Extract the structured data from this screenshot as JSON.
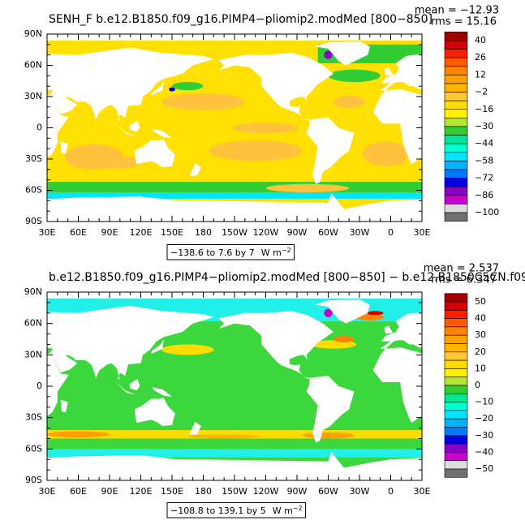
{
  "panels": [
    {
      "title": "SENH_F b.e12.B1850.f09_g16.PIMP4−pliomip2.modMed [800−850]",
      "mean": "mean = −12.93",
      "rms": "rms = 15.16",
      "lat_labels": [
        "90N",
        "60N",
        "30N",
        "0",
        "30S",
        "60S",
        "90S"
      ],
      "lon_labels": [
        "30E",
        "60E",
        "90E",
        "120E",
        "150E",
        "180",
        "150W",
        "120W",
        "90W",
        "60W",
        "30W",
        "0",
        "30E"
      ],
      "colorbar_labels": [
        "40",
        "26",
        "12",
        "−2",
        "−16",
        "−30",
        "−44",
        "−58",
        "−72",
        "−86",
        "−100"
      ],
      "range_note": "−138.6 to 7.6 by 7",
      "units": "W m",
      "units_exp": "−2"
    },
    {
      "title": "b.e12.B1850.f09_g16.PIMP4−pliomip2.modMed [800−850] − b.e12.B1850C5CN.f09",
      "mean": "mean = 2.537",
      "rms": "rms = 6.347",
      "lat_labels": [
        "90N",
        "60N",
        "30N",
        "0",
        "30S",
        "60S",
        "90S"
      ],
      "lon_labels": [
        "30E",
        "60E",
        "90E",
        "120E",
        "150E",
        "180",
        "150W",
        "120W",
        "90W",
        "60W",
        "30W",
        "0",
        "30E"
      ],
      "colorbar_labels": [
        "50",
        "40",
        "30",
        "20",
        "10",
        "0",
        "−10",
        "−20",
        "−30",
        "−40",
        "−50"
      ],
      "range_note": "−108.8 to 139.1 by 5",
      "units": "W m",
      "units_exp": "−2"
    }
  ]
}
